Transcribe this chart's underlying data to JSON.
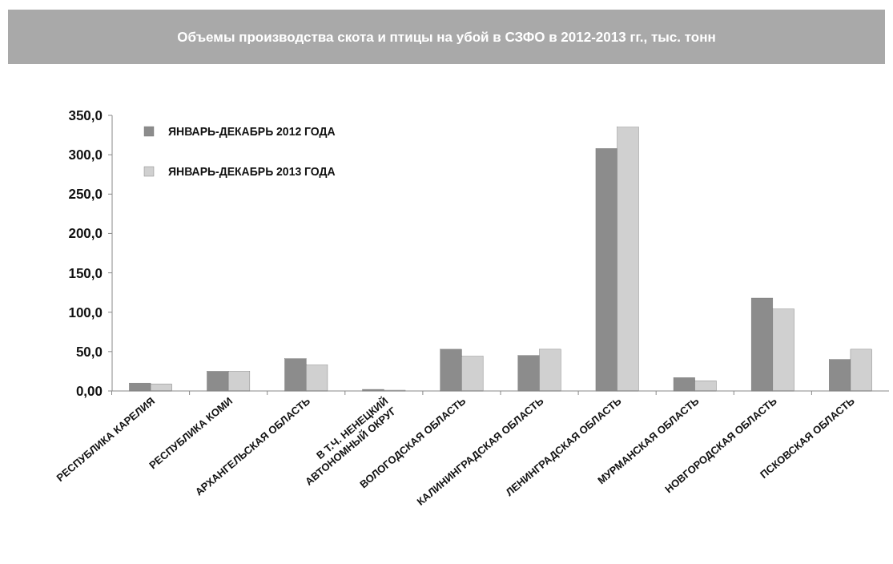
{
  "chart_data": {
    "type": "bar",
    "title": "Объемы производства скота и птицы на убой в СЗФО в 2012-2013 гг., тыс. тонн",
    "categories": [
      "РЕСПУБЛИКА КАРЕЛИЯ",
      "РЕСПУБЛИКА КОМИ",
      "АРХАНГЕЛЬСКАЯ ОБЛАСТЬ",
      "В Т.Ч. НЕНЕЦКИЙ\nАВТОНОМНЫЙ ОКРУГ",
      "ВОЛОГОДСКАЯ ОБЛАСТЬ",
      "КАЛИНИНГРАДСКАЯ ОБЛАСТЬ",
      "ЛЕНИНГРАДСКАЯ ОБЛАСТЬ",
      "МУРМАНСКАЯ ОБЛАСТЬ",
      "НОВГОРОДСКАЯ ОБЛАСТЬ",
      "ПСКОВСКАЯ ОБЛАСТЬ"
    ],
    "series": [
      {
        "name": "ЯНВАРЬ-ДЕКАБРЬ 2012 ГОДА",
        "color": "#8c8c8c",
        "values": [
          10,
          25,
          41,
          2,
          53,
          45,
          308,
          17,
          118,
          40
        ]
      },
      {
        "name": "ЯНВАРЬ-ДЕКАБРЬ 2013 ГОДА",
        "color": "#d0d0d0",
        "values": [
          9,
          25,
          33,
          1,
          44,
          53,
          335,
          13,
          104,
          53
        ]
      }
    ],
    "ylim": [
      0,
      350
    ],
    "yticks": [
      {
        "value": 0,
        "label": "0,00"
      },
      {
        "value": 50,
        "label": "50,0"
      },
      {
        "value": 100,
        "label": "100,0"
      },
      {
        "value": 150,
        "label": "150,0"
      },
      {
        "value": 200,
        "label": "200,0"
      },
      {
        "value": 250,
        "label": "250,0"
      },
      {
        "value": 300,
        "label": "300,0"
      },
      {
        "value": 350,
        "label": "350,0"
      }
    ],
    "grid": false,
    "legend": "top left"
  }
}
